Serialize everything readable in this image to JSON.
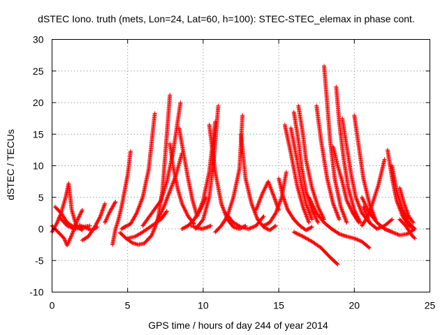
{
  "chart_data": {
    "type": "scatter",
    "title": "dSTEC Iono. truth (mets, Lon=24, Lat=60, h=100): STEC-STEC_elemax in phase cont.",
    "xlabel": "GPS time / hours of day 244 of year 2014",
    "ylabel": "dSTEC  / TECUs",
    "xlim": [
      0,
      25
    ],
    "ylim": [
      -10,
      30
    ],
    "xticks": [
      0,
      5,
      10,
      15,
      20,
      25
    ],
    "yticks": [
      -10,
      -5,
      0,
      5,
      10,
      15,
      20,
      25,
      30
    ],
    "xtick_labels": [
      "0",
      "5",
      "10",
      "15",
      "20",
      "25"
    ],
    "ytick_labels": [
      "-10",
      "-5",
      "0",
      "5",
      "10",
      "15",
      "20",
      "25",
      "30"
    ],
    "grid": true,
    "legend": "none",
    "marker": "plus",
    "color": "#ff0000",
    "series": [
      {
        "x": [
          0.0,
          0.3,
          0.6,
          0.9,
          1.1,
          1.3,
          1.6,
          2.0
        ],
        "y": [
          -0.5,
          0.8,
          2.5,
          5.0,
          7.2,
          3.0,
          0.5,
          -0.2
        ]
      },
      {
        "x": [
          0.0,
          0.4,
          0.8,
          1.0,
          1.3,
          1.7,
          2.0
        ],
        "y": [
          0.5,
          -0.5,
          -1.5,
          -2.6,
          -1.0,
          1.5,
          3.0
        ]
      },
      {
        "x": [
          0.2,
          0.6,
          1.0,
          1.5,
          2.0
        ],
        "y": [
          3.5,
          2.5,
          1.0,
          0.2,
          0.0
        ]
      },
      {
        "x": [
          0.5,
          1.0,
          1.5,
          2.0,
          2.5
        ],
        "y": [
          1.8,
          0.5,
          0.0,
          0.3,
          0.5
        ]
      },
      {
        "x": [
          2.0,
          2.4,
          2.8,
          3.2,
          3.5
        ],
        "y": [
          -1.8,
          -1.2,
          0.2,
          2.0,
          4.0
        ]
      },
      {
        "x": [
          1.8,
          2.2,
          2.6,
          3.0
        ],
        "y": [
          0.6,
          0.2,
          -0.2,
          0.3
        ]
      },
      {
        "x": [
          3.5,
          3.8,
          4.2
        ],
        "y": [
          1.0,
          2.6,
          4.3
        ]
      },
      {
        "x": [
          4.0,
          4.2,
          4.4,
          4.6,
          4.8,
          5.0,
          5.2
        ],
        "y": [
          -2.5,
          0.0,
          1.5,
          3.5,
          6.0,
          8.5,
          12.3
        ]
      },
      {
        "x": [
          4.5,
          4.9,
          5.3,
          5.7,
          6.1,
          6.6,
          7.0,
          7.3,
          7.5,
          7.8
        ],
        "y": [
          -0.6,
          -1.5,
          -2.2,
          -2.5,
          -2.3,
          -1.0,
          1.5,
          6.0,
          12.0,
          21.2
        ]
      },
      {
        "x": [
          4.6,
          4.8,
          5.2,
          5.6,
          6.0,
          6.4,
          6.8
        ],
        "y": [
          0.0,
          0.3,
          0.8,
          2.5,
          5.0,
          9.5,
          18.3
        ]
      },
      {
        "x": [
          5.0,
          5.5,
          6.0,
          6.6,
          7.2,
          7.6
        ],
        "y": [
          -1.5,
          -1.2,
          -0.5,
          0.5,
          1.5,
          2.8
        ]
      },
      {
        "x": [
          6.0,
          6.6,
          7.2,
          7.6,
          8.0,
          8.5
        ],
        "y": [
          0.5,
          2.5,
          4.5,
          7.5,
          12.0,
          20.0
        ]
      },
      {
        "x": [
          6.9,
          7.4,
          7.8,
          8.2,
          8.6
        ],
        "y": [
          1.0,
          3.5,
          6.0,
          8.5,
          12.0
        ]
      },
      {
        "x": [
          7.8,
          8.0,
          8.3,
          8.6,
          9.0,
          9.4
        ],
        "y": [
          13.5,
          10.0,
          6.5,
          4.0,
          2.0,
          0.8
        ]
      },
      {
        "x": [
          8.4,
          8.7,
          9.0,
          9.3,
          9.6
        ],
        "y": [
          16.0,
          12.0,
          8.0,
          4.5,
          2.0
        ]
      },
      {
        "x": [
          8.6,
          9.0,
          9.4,
          9.8,
          10.2
        ],
        "y": [
          0.0,
          0.5,
          1.5,
          3.0,
          5.0
        ]
      },
      {
        "x": [
          9.2,
          9.6,
          9.9,
          10.2,
          10.5
        ],
        "y": [
          0.5,
          0.2,
          0.0,
          0.2,
          0.5
        ]
      },
      {
        "x": [
          9.6,
          10.0,
          10.4,
          10.6,
          10.8
        ],
        "y": [
          2.0,
          4.5,
          9.0,
          13.0,
          17.0
        ]
      },
      {
        "x": [
          9.5,
          10.0,
          10.4,
          10.7,
          11.0
        ],
        "y": [
          0.0,
          1.5,
          5.0,
          11.0,
          19.5
        ]
      },
      {
        "x": [
          10.4,
          10.8,
          11.2,
          11.6,
          12.0,
          12.4,
          12.8
        ],
        "y": [
          16.5,
          9.0,
          4.0,
          1.5,
          0.3,
          0.0,
          0.5
        ]
      },
      {
        "x": [
          10.8,
          11.2,
          11.6,
          12.0,
          12.4,
          12.6
        ],
        "y": [
          -0.5,
          0.5,
          2.0,
          5.0,
          9.5,
          18.0
        ]
      },
      {
        "x": [
          11.5,
          12.0,
          12.5,
          13.0,
          13.5,
          14.0
        ],
        "y": [
          2.5,
          1.0,
          0.3,
          0.0,
          0.5,
          2.0
        ]
      },
      {
        "x": [
          12.5,
          12.8,
          13.2,
          13.6,
          14.0,
          14.4,
          14.8
        ],
        "y": [
          15.0,
          8.0,
          4.0,
          1.5,
          0.3,
          -0.2,
          0.5
        ]
      },
      {
        "x": [
          13.5,
          13.9,
          14.3,
          14.7,
          15.0
        ],
        "y": [
          3.0,
          5.5,
          7.5,
          5.0,
          3.0
        ]
      },
      {
        "x": [
          14.0,
          14.4,
          14.8,
          15.2,
          15.5
        ],
        "y": [
          0.5,
          1.0,
          2.5,
          5.0,
          9.0
        ]
      },
      {
        "x": [
          15.0,
          15.3,
          15.6,
          16.0,
          16.4,
          16.8,
          17.2
        ],
        "y": [
          8.0,
          5.0,
          3.0,
          1.5,
          0.5,
          -0.2,
          0.3
        ]
      },
      {
        "x": [
          15.4,
          15.8,
          16.2,
          16.6,
          17.0
        ],
        "y": [
          16.5,
          12.0,
          7.0,
          3.5,
          1.0
        ]
      },
      {
        "x": [
          15.8,
          16.2,
          16.5,
          16.8,
          17.2
        ],
        "y": [
          16.0,
          11.0,
          7.0,
          4.0,
          1.5
        ]
      },
      {
        "x": [
          16.0,
          16.3,
          16.5,
          16.8,
          17.2,
          17.6
        ],
        "y": [
          18.5,
          14.0,
          10.0,
          6.0,
          3.0,
          1.0
        ]
      },
      {
        "x": [
          16.3,
          16.6,
          16.8,
          17.2,
          17.6,
          18.0
        ],
        "y": [
          19.5,
          15.0,
          11.0,
          6.5,
          3.5,
          1.5
        ]
      },
      {
        "x": [
          16.0,
          16.6,
          17.2,
          17.8,
          18.4,
          18.9
        ],
        "y": [
          -0.5,
          -1.2,
          -2.0,
          -3.0,
          -4.5,
          -5.6
        ]
      },
      {
        "x": [
          17.0,
          17.5,
          18.0,
          18.5,
          19.0,
          19.5,
          20.0,
          20.5,
          21.0
        ],
        "y": [
          5.0,
          2.5,
          1.0,
          0.0,
          -0.8,
          -1.2,
          -1.5,
          -2.0,
          -3.0
        ]
      },
      {
        "x": [
          17.5,
          17.8,
          18.2,
          18.6,
          19.0
        ],
        "y": [
          19.5,
          14.0,
          8.0,
          4.0,
          1.5
        ]
      },
      {
        "x": [
          18.0,
          18.2,
          18.4,
          18.7,
          19.1,
          19.5
        ],
        "y": [
          25.8,
          20.0,
          14.0,
          8.0,
          3.5,
          1.0
        ]
      },
      {
        "x": [
          18.6,
          18.9,
          19.2,
          19.5,
          19.9,
          20.3
        ],
        "y": [
          13.0,
          10.0,
          7.5,
          4.5,
          2.5,
          1.0
        ]
      },
      {
        "x": [
          18.8,
          19.0,
          19.3,
          19.6,
          20.0,
          20.4
        ],
        "y": [
          22.5,
          17.0,
          11.0,
          6.5,
          3.0,
          1.0
        ]
      },
      {
        "x": [
          19.2,
          19.5,
          19.8,
          20.1,
          20.5,
          21.0
        ],
        "y": [
          17.5,
          13.0,
          8.5,
          5.0,
          2.5,
          1.0
        ]
      },
      {
        "x": [
          20.0,
          20.3,
          20.6,
          21.0,
          21.4
        ],
        "y": [
          18.0,
          13.0,
          8.0,
          4.0,
          1.5
        ]
      },
      {
        "x": [
          20.5,
          21.0,
          21.5,
          22.0,
          22.5
        ],
        "y": [
          5.0,
          2.5,
          1.0,
          0.0,
          -0.5
        ]
      },
      {
        "x": [
          20.5,
          20.9,
          21.2,
          21.6,
          22.0
        ],
        "y": [
          0.5,
          2.0,
          4.0,
          7.0,
          11.0
        ]
      },
      {
        "x": [
          20.6,
          21.0,
          21.5,
          22.0,
          22.5
        ],
        "y": [
          3.5,
          1.0,
          0.0,
          0.5,
          1.5
        ]
      },
      {
        "x": [
          22.2,
          22.5,
          22.8,
          23.2,
          23.6,
          24.0
        ],
        "y": [
          12.5,
          8.0,
          4.5,
          2.0,
          0.5,
          0.0
        ]
      },
      {
        "x": [
          22.5,
          22.8,
          23.2,
          23.6,
          24.0
        ],
        "y": [
          10.0,
          6.0,
          3.0,
          1.0,
          0.0
        ]
      },
      {
        "x": [
          23.0,
          23.3,
          23.6,
          23.9
        ],
        "y": [
          6.5,
          4.0,
          2.0,
          1.0
        ]
      },
      {
        "x": [
          22.0,
          22.5,
          23.0,
          23.5,
          24.0
        ],
        "y": [
          0.0,
          -0.5,
          -1.0,
          -0.8,
          0.0
        ]
      },
      {
        "x": [
          23.0,
          23.4,
          23.8,
          24.0
        ],
        "y": [
          1.5,
          0.5,
          -1.0,
          -1.5
        ]
      }
    ]
  }
}
